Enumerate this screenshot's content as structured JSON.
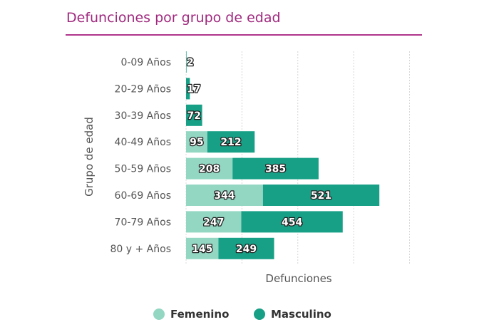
{
  "chart_data": {
    "type": "bar",
    "orientation": "horizontal",
    "stacked": true,
    "title": "Defunciones por grupo de edad",
    "xlabel": "Defunciones",
    "ylabel": "Grupo de edad",
    "categories": [
      "0-09 Años",
      "20-29 Años",
      "30-39 Años",
      "40-49 Años",
      "50-59 Años",
      "60-69 Años",
      "70-79 Años",
      "80 y + Años"
    ],
    "series": [
      {
        "name": "Femenino",
        "color": "#93d7c3",
        "values": [
          0,
          0,
          0,
          95,
          208,
          344,
          247,
          145
        ],
        "labels": [
          "",
          "",
          "",
          "95",
          "208",
          "344",
          "247",
          "145"
        ]
      },
      {
        "name": "Masculino",
        "color": "#17a086",
        "values": [
          2,
          17,
          72,
          212,
          385,
          521,
          454,
          249
        ],
        "labels": [
          "2",
          "17",
          "72",
          "212",
          "385",
          "521",
          "454",
          "249"
        ]
      }
    ],
    "xlim": [
      0,
      1000
    ],
    "grid": true,
    "legend": "bottom-center"
  }
}
